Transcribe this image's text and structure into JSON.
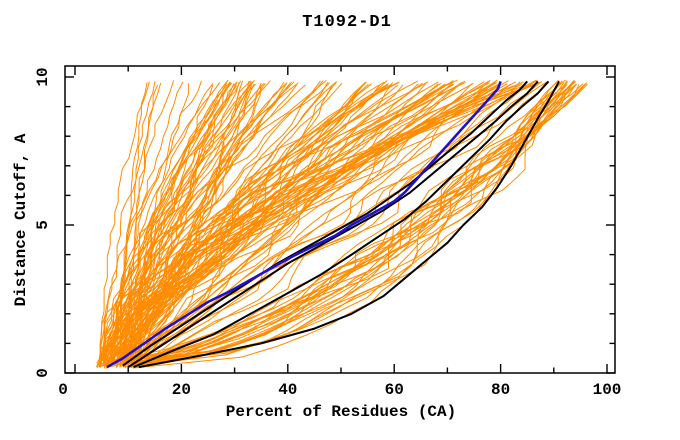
{
  "chart_data": {
    "type": "line",
    "title": "T1092-D1",
    "xlabel": "Percent of Residues (CA)",
    "ylabel": "Distance Cutoff, A",
    "xlim": [
      0,
      100
    ],
    "ylim": [
      0,
      10
    ],
    "x_major_ticks": [
      0,
      20,
      40,
      60,
      80,
      100
    ],
    "x_minor_ticks": [
      10,
      30,
      50,
      70,
      90
    ],
    "y_major_ticks": [
      0,
      5,
      10
    ],
    "y_minor_ticks": [
      1,
      2,
      3,
      4,
      6,
      7,
      8,
      9
    ],
    "grid": false,
    "legend": "none",
    "colors": {
      "background": "#ffffff",
      "axis": "#000000",
      "orange": "#ff8c00",
      "black": "#000000",
      "blue": "#2211cc"
    },
    "series": [
      {
        "name": "highlighted-model-blue",
        "color_key": "blue",
        "width": 2.6,
        "points": [
          [
            6,
            0.2
          ],
          [
            9,
            0.5
          ],
          [
            13,
            1.0
          ],
          [
            17,
            1.5
          ],
          [
            21,
            1.95
          ],
          [
            25,
            2.4
          ],
          [
            29,
            2.75
          ],
          [
            33,
            3.15
          ],
          [
            37,
            3.55
          ],
          [
            41,
            3.95
          ],
          [
            45,
            4.3
          ],
          [
            49,
            4.65
          ],
          [
            52,
            5.0
          ],
          [
            55,
            5.3
          ],
          [
            58,
            5.6
          ],
          [
            60,
            5.8
          ],
          [
            62,
            6.1
          ],
          [
            64,
            6.5
          ],
          [
            66,
            6.9
          ],
          [
            68,
            7.3
          ],
          [
            70,
            7.7
          ],
          [
            72,
            8.1
          ],
          [
            74,
            8.5
          ],
          [
            76,
            8.9
          ],
          [
            78,
            9.3
          ],
          [
            79.5,
            9.6
          ],
          [
            80,
            9.85
          ]
        ]
      },
      {
        "name": "highlighted-model-black-1",
        "color_key": "black",
        "width": 2.0,
        "points": [
          [
            9,
            0.25
          ],
          [
            14,
            0.9
          ],
          [
            20,
            1.6
          ],
          [
            26,
            2.3
          ],
          [
            32,
            3.0
          ],
          [
            38,
            3.7
          ],
          [
            44,
            4.3
          ],
          [
            50,
            4.9
          ],
          [
            55,
            5.4
          ],
          [
            59,
            5.9
          ],
          [
            63,
            6.4
          ],
          [
            67,
            7.0
          ],
          [
            71,
            7.6
          ],
          [
            74.5,
            8.1
          ],
          [
            78,
            8.7
          ],
          [
            81,
            9.2
          ],
          [
            83.5,
            9.55
          ],
          [
            85,
            9.85
          ]
        ]
      },
      {
        "name": "highlighted-model-black-2",
        "color_key": "black",
        "width": 2.0,
        "points": [
          [
            10,
            0.2
          ],
          [
            16,
            0.9
          ],
          [
            22,
            1.6
          ],
          [
            28,
            2.3
          ],
          [
            34,
            3.0
          ],
          [
            40,
            3.7
          ],
          [
            46,
            4.3
          ],
          [
            52,
            4.9
          ],
          [
            58,
            5.5
          ],
          [
            63,
            6.1
          ],
          [
            67,
            6.7
          ],
          [
            71,
            7.3
          ],
          [
            75,
            7.9
          ],
          [
            79,
            8.5
          ],
          [
            82,
            9.0
          ],
          [
            85,
            9.45
          ],
          [
            87,
            9.85
          ]
        ]
      },
      {
        "name": "highlighted-model-black-3",
        "color_key": "black",
        "width": 2.0,
        "points": [
          [
            11,
            0.2
          ],
          [
            19,
            0.8
          ],
          [
            26,
            1.3
          ],
          [
            33,
            2.0
          ],
          [
            40,
            2.7
          ],
          [
            46,
            3.3
          ],
          [
            52,
            4.0
          ],
          [
            57,
            4.6
          ],
          [
            62,
            5.2
          ],
          [
            66,
            5.8
          ],
          [
            70,
            6.5
          ],
          [
            74,
            7.2
          ],
          [
            78,
            7.9
          ],
          [
            81,
            8.5
          ],
          [
            84,
            9.0
          ],
          [
            87,
            9.45
          ],
          [
            89,
            9.85
          ]
        ]
      },
      {
        "name": "highlighted-model-black-4",
        "color_key": "black",
        "width": 2.0,
        "points": [
          [
            12,
            0.2
          ],
          [
            24,
            0.6
          ],
          [
            35,
            1.0
          ],
          [
            45,
            1.5
          ],
          [
            52,
            2.0
          ],
          [
            58,
            2.6
          ],
          [
            62,
            3.2
          ],
          [
            66,
            3.8
          ],
          [
            70,
            4.4
          ],
          [
            73,
            5.0
          ],
          [
            76.5,
            5.6
          ],
          [
            79.5,
            6.3
          ],
          [
            82,
            7.0
          ],
          [
            84.5,
            7.8
          ],
          [
            87,
            8.6
          ],
          [
            89,
            9.2
          ],
          [
            91,
            9.85
          ]
        ]
      }
    ],
    "background_family": {
      "name": "server-model-curves-orange",
      "color_key": "orange",
      "width": 1.0,
      "count": 150,
      "seed": 1092,
      "start_x_range": [
        4,
        12
      ],
      "start_y_range": [
        0.15,
        0.45
      ],
      "top_y_range": [
        9.72,
        9.9
      ],
      "groups": [
        {
          "fraction": 0.12,
          "top_x_range": [
            12,
            30
          ],
          "shape_range": [
            1.0,
            2.2
          ]
        },
        {
          "fraction": 0.73,
          "top_x_range": [
            28,
            90
          ],
          "shape_range": [
            0.75,
            1.85
          ]
        },
        {
          "fraction": 0.15,
          "top_x_range": [
            90,
            97
          ],
          "shape_range": [
            0.42,
            0.68
          ]
        }
      ],
      "right_envelope_readings": [
        [
          44,
          0.9
        ],
        [
          65,
          1.9
        ],
        [
          84,
          2.8
        ],
        [
          91,
          3.8
        ],
        [
          97,
          5.0
        ],
        [
          100,
          7.0
        ]
      ],
      "left_envelope_readings": [
        [
          6,
          3.8
        ],
        [
          11,
          8.5
        ],
        [
          11,
          9.8
        ]
      ]
    }
  }
}
